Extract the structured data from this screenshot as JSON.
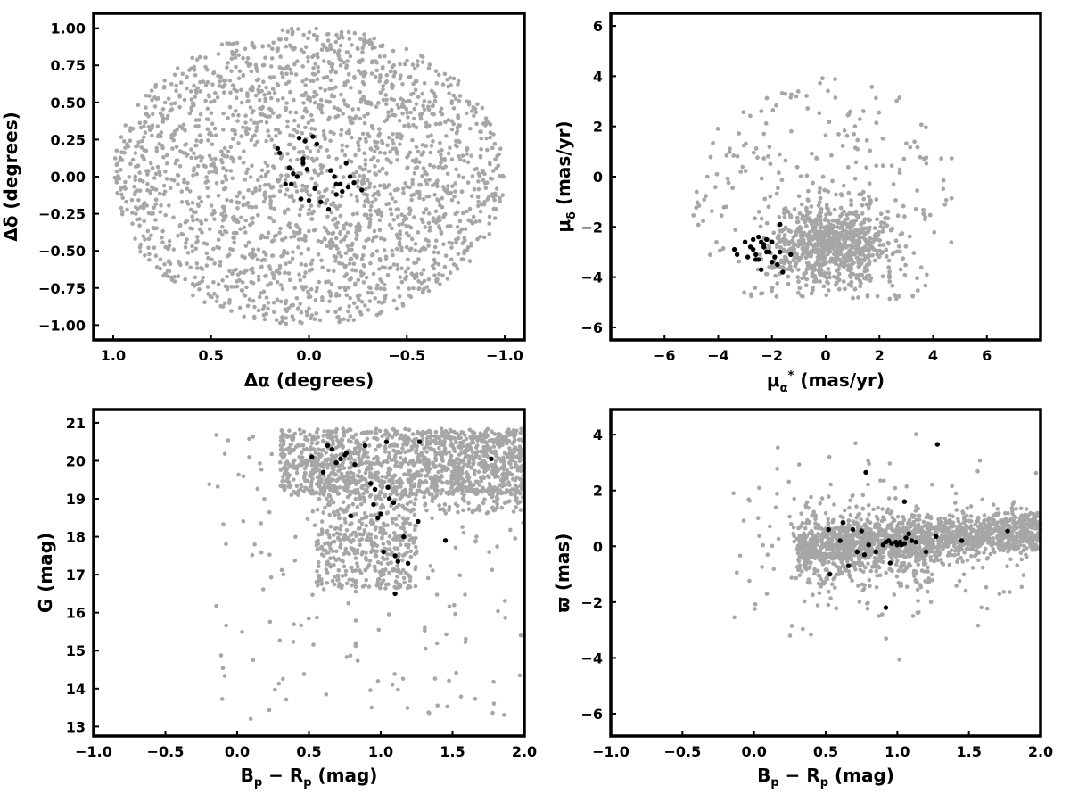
{
  "colors": {
    "field": "#a6a6a6",
    "members": "#000000",
    "frame": "#000000",
    "background": "#ffffff"
  },
  "chart_data": [
    {
      "id": "sky",
      "type": "scatter",
      "xlabel": "Δα (degrees)",
      "ylabel": "Δδ (degrees)",
      "xlim": [
        1.1,
        -1.1
      ],
      "ylim": [
        -1.1,
        1.1
      ],
      "xticks": [
        1.0,
        0.5,
        0.0,
        -0.5,
        -1.0
      ],
      "xtick_labels": [
        "1.0",
        "0.5",
        "0.0",
        "−0.5",
        "−1.0"
      ],
      "yticks": [
        -1.0,
        -0.75,
        -0.5,
        -0.25,
        0.0,
        0.25,
        0.5,
        0.75,
        1.0
      ],
      "ytick_labels": [
        "−1.00",
        "−0.75",
        "−0.50",
        "−0.25",
        "0.00",
        "0.25",
        "0.50",
        "0.75",
        "1.00"
      ],
      "grid": false,
      "field": {
        "n": 2200,
        "distribution": "uniform disk",
        "center": [
          0,
          0
        ],
        "radius": 1.0
      },
      "members": {
        "x": [
          -0.02,
          0.02,
          0.05,
          0.03,
          0.03,
          -0.04,
          0.01,
          0.06,
          0.09,
          0.12,
          -0.19,
          -0.21,
          -0.23,
          -0.11,
          -0.13,
          -0.16,
          -0.2,
          -0.17,
          -0.27,
          -0.14,
          -0.06,
          -0.1,
          -0.14,
          0.08,
          0.1,
          0.15,
          0.16,
          0.04,
          0.0,
          -0.03
        ],
        "y": [
          0.27,
          0.24,
          0.26,
          0.12,
          0.09,
          0.22,
          0.05,
          0.0,
          -0.05,
          -0.05,
          0.09,
          0.0,
          -0.04,
          0.04,
          0.0,
          -0.05,
          -0.07,
          -0.1,
          -0.09,
          -0.12,
          -0.17,
          -0.22,
          -0.05,
          0.02,
          0.06,
          0.16,
          0.19,
          -0.15,
          -0.16,
          -0.08
        ]
      }
    },
    {
      "id": "proper-motion",
      "type": "scatter",
      "xlabel": "μα* (mas/yr)",
      "xlabel_main": "μ",
      "xlabel_sub": "α",
      "xlabel_sup": "*",
      "xlabel_rest": "  (mas/yr)",
      "ylabel": "μδ (mas/yr)",
      "ylabel_main": "μ",
      "ylabel_sub": "δ",
      "ylabel_rest": " (mas/yr)",
      "xlim": [
        -8,
        8
      ],
      "ylim": [
        -6.5,
        6.5
      ],
      "xticks": [
        -6,
        -4,
        -2,
        0,
        2,
        4,
        6
      ],
      "xtick_labels": [
        "−6",
        "−4",
        "−2",
        "0",
        "2",
        "4",
        "6"
      ],
      "yticks": [
        -6,
        -4,
        -2,
        0,
        2,
        4,
        6
      ],
      "ytick_labels": [
        "−6",
        "−4",
        "−2",
        "0",
        "2",
        "4",
        "6"
      ],
      "grid": false,
      "field": {
        "n": 2200,
        "distribution": "clipped disk",
        "center": [
          0,
          -1.0
        ],
        "radius": 5.0,
        "ymin": -4.9
      },
      "members": {
        "x": [
          -2.5,
          -2.4,
          -2.2,
          -2.0,
          -2.3,
          -2.7,
          -2.8,
          -2.6,
          -2.9,
          -3.3,
          -3.4,
          -2.5,
          -2.6,
          -2.2,
          -2.1,
          -1.9,
          -1.7,
          -1.8,
          -1.6,
          -2.0,
          -2.4,
          -3.0,
          -2.7,
          -2.3,
          -1.3,
          -1.7
        ],
        "y": [
          -2.4,
          -2.6,
          -2.5,
          -2.6,
          -2.8,
          -2.9,
          -2.8,
          -3.1,
          -3.2,
          -3.1,
          -2.9,
          -3.3,
          -3.3,
          -3.0,
          -3.0,
          -3.2,
          -3.0,
          -3.5,
          -3.8,
          -3.4,
          -3.7,
          -2.6,
          -2.5,
          -2.7,
          -3.1,
          -1.9
        ]
      }
    },
    {
      "id": "cmd-g",
      "type": "scatter",
      "xlabel": "Bp − Rp (mag)",
      "xlabel_B": "B",
      "xlabel_Bsub": "p",
      "xlabel_minus": " − ",
      "xlabel_R": "R",
      "xlabel_Rsub": "p",
      "xlabel_rest": " (mag)",
      "ylabel": "G (mag)",
      "xlim": [
        -1.0,
        2.0
      ],
      "ylim": [
        12.75,
        21.35
      ],
      "xticks": [
        -1.0,
        -0.5,
        0.0,
        0.5,
        1.0,
        1.5,
        2.0
      ],
      "xtick_labels": [
        "−1.0",
        "−0.5",
        "0.0",
        "0.5",
        "1.0",
        "1.5",
        "2.0"
      ],
      "yticks": [
        13,
        14,
        15,
        16,
        17,
        18,
        19,
        20,
        21
      ],
      "ytick_labels": [
        "13",
        "14",
        "15",
        "16",
        "17",
        "18",
        "19",
        "20",
        "21"
      ],
      "grid": false,
      "members": {
        "x": [
          0.52,
          0.6,
          0.63,
          0.66,
          0.69,
          0.72,
          0.75,
          0.76,
          0.82,
          0.89,
          0.93,
          0.95,
          0.96,
          0.98,
          1.0,
          1.02,
          1.05,
          1.06,
          1.09,
          1.1,
          1.12,
          1.16,
          1.19,
          1.26,
          1.27,
          1.45,
          1.77,
          1.04,
          0.79,
          1.1
        ],
        "y": [
          20.1,
          19.7,
          20.4,
          20.3,
          19.95,
          20.05,
          20.15,
          20.2,
          19.9,
          20.4,
          19.4,
          18.85,
          19.25,
          18.5,
          18.6,
          17.6,
          19.3,
          19.0,
          18.9,
          17.5,
          17.35,
          18.0,
          17.3,
          18.4,
          20.5,
          17.9,
          20.05,
          20.5,
          18.55,
          16.5
        ]
      }
    },
    {
      "id": "cmd-parallax",
      "type": "scatter",
      "xlabel": "Bp − Rp (mag)",
      "xlabel_B": "B",
      "xlabel_Bsub": "p",
      "xlabel_minus": " − ",
      "xlabel_R": "R",
      "xlabel_Rsub": "p",
      "xlabel_rest": " (mag)",
      "ylabel": "ϖ (mas)",
      "xlim": [
        -1.0,
        2.0
      ],
      "ylim": [
        -6.8,
        4.9
      ],
      "xticks": [
        -1.0,
        -0.5,
        0.0,
        0.5,
        1.0,
        1.5,
        2.0
      ],
      "xtick_labels": [
        "−1.0",
        "−0.5",
        "0.0",
        "0.5",
        "1.0",
        "1.5",
        "2.0"
      ],
      "yticks": [
        -6,
        -4,
        -2,
        0,
        2,
        4
      ],
      "ytick_labels": [
        "−6",
        "−4",
        "−2",
        "0",
        "2",
        "4"
      ],
      "grid": false,
      "members": {
        "x": [
          0.52,
          0.6,
          0.62,
          0.66,
          0.69,
          0.72,
          0.75,
          0.77,
          0.8,
          0.85,
          0.9,
          0.92,
          0.94,
          0.95,
          0.96,
          0.99,
          1.0,
          1.02,
          1.03,
          1.05,
          1.06,
          1.08,
          1.1,
          1.13,
          1.2,
          1.27,
          1.28,
          1.45,
          1.77,
          0.78,
          0.53,
          0.92,
          1.05
        ],
        "y": [
          0.6,
          0.2,
          0.85,
          -0.7,
          0.6,
          -0.2,
          0.55,
          -0.3,
          0.05,
          -0.2,
          0.05,
          0.15,
          0.2,
          -0.6,
          0.1,
          0.15,
          0.05,
          0.15,
          0.05,
          0.1,
          0.3,
          0.45,
          0.2,
          0.15,
          -0.2,
          0.35,
          3.65,
          0.2,
          0.55,
          2.65,
          -1.0,
          -2.2,
          1.6
        ]
      }
    }
  ]
}
